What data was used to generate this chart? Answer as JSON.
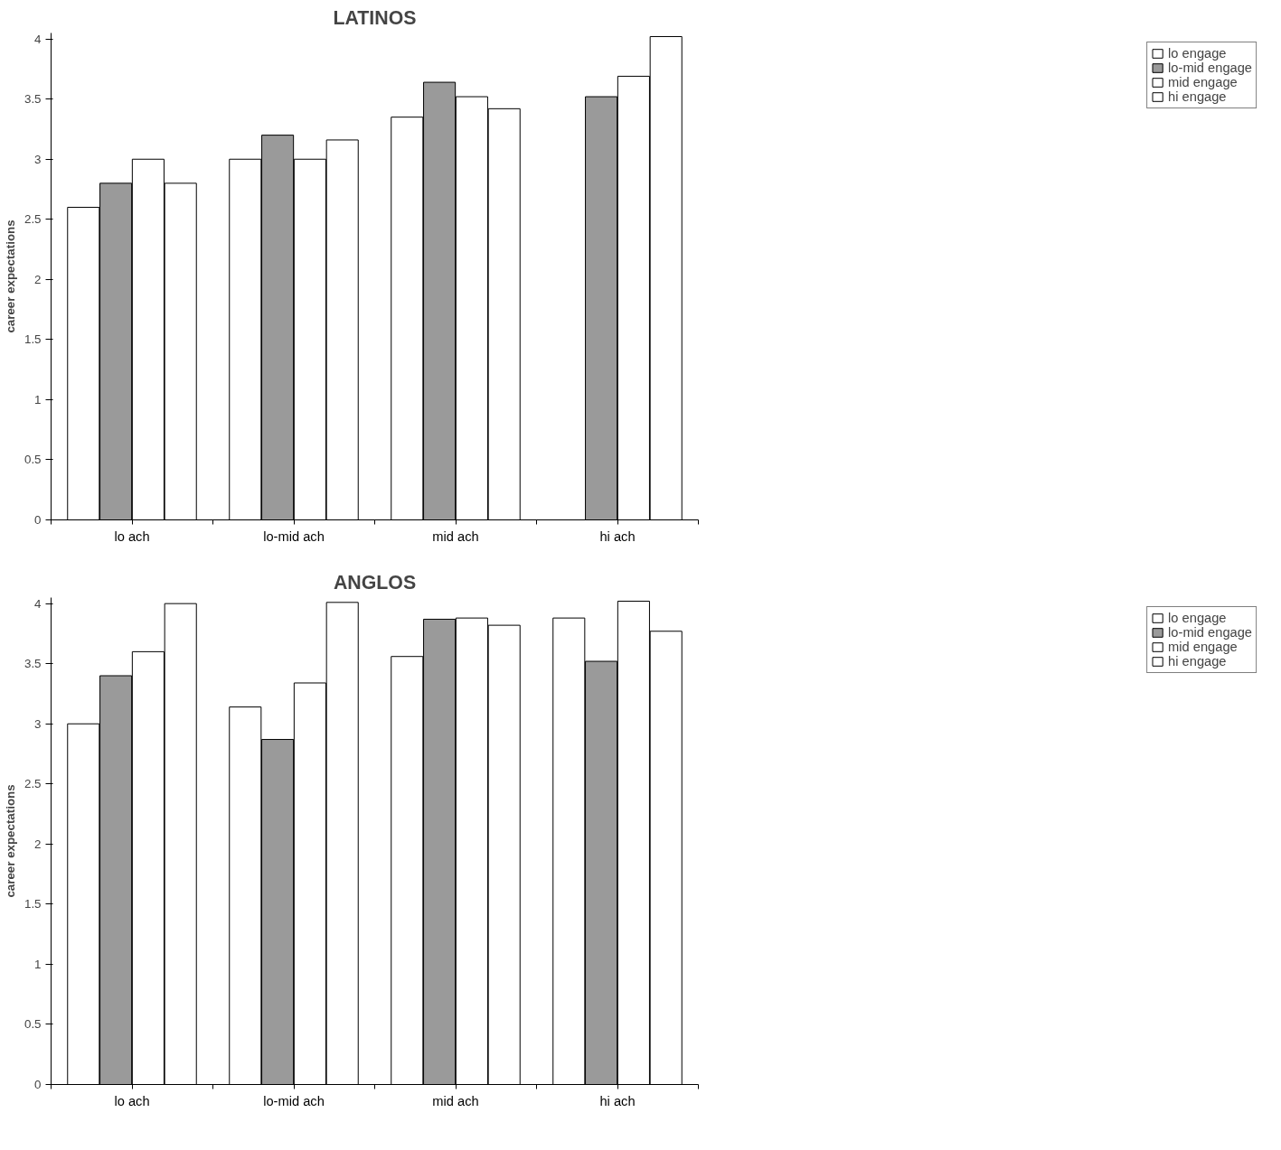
{
  "chart_data": [
    {
      "type": "bar",
      "title": "LATINOS",
      "ylabel": "career expectations",
      "categories": [
        "lo ach",
        "lo-mid ach",
        "mid ach",
        "hi ach"
      ],
      "ylim": [
        0,
        4.05
      ],
      "yticks": [
        0,
        0.5,
        1,
        1.5,
        2,
        2.5,
        3,
        3.5,
        4
      ],
      "grid": false,
      "legend": "right",
      "series": [
        {
          "name": "lo engage",
          "color": "#ffffff",
          "values": [
            2.6,
            3.0,
            3.35,
            null
          ]
        },
        {
          "name": "lo-mid engage",
          "color": "#9a9a9a",
          "values": [
            2.8,
            3.2,
            3.64,
            3.52
          ]
        },
        {
          "name": "mid engage",
          "color": "#ffffff",
          "values": [
            3.0,
            3.0,
            3.52,
            3.69
          ]
        },
        {
          "name": "hi engage",
          "color": "#ffffff",
          "values": [
            2.8,
            3.16,
            3.42,
            4.02
          ]
        }
      ]
    },
    {
      "type": "bar",
      "title": "ANGLOS",
      "ylabel": "career expectations",
      "categories": [
        "lo ach",
        "lo-mid ach",
        "mid ach",
        "hi ach"
      ],
      "ylim": [
        0,
        4.05
      ],
      "yticks": [
        0,
        0.5,
        1,
        1.5,
        2,
        2.5,
        3,
        3.5,
        4
      ],
      "grid": false,
      "legend": "right",
      "series": [
        {
          "name": "lo engage",
          "color": "#ffffff",
          "values": [
            3.0,
            3.14,
            3.56,
            3.88
          ]
        },
        {
          "name": "lo-mid engage",
          "color": "#9a9a9a",
          "values": [
            3.4,
            2.87,
            3.87,
            3.52
          ]
        },
        {
          "name": "mid engage",
          "color": "#ffffff",
          "values": [
            3.6,
            3.34,
            3.88,
            4.02
          ]
        },
        {
          "name": "hi engage",
          "color": "#ffffff",
          "values": [
            4.0,
            4.01,
            3.82,
            3.77
          ]
        }
      ]
    }
  ]
}
